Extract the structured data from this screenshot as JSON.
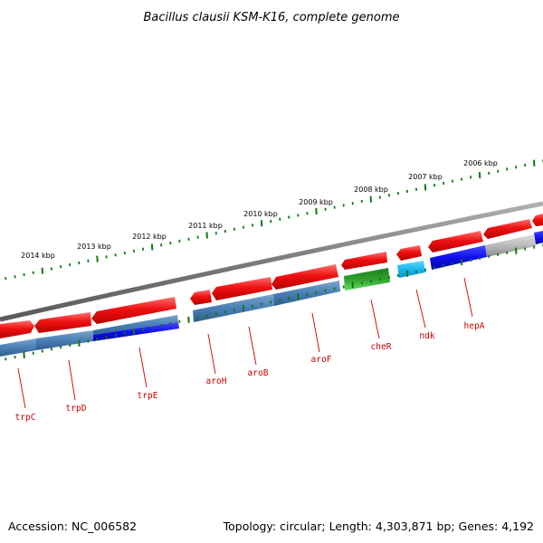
{
  "title": "Bacillus clausii KSM-K16, complete genome",
  "footer": {
    "accession": "Accession: NC_006582",
    "summary": "Topology: circular; Length: 4,303,871 bp; Genes: 4,192"
  },
  "colors": {
    "forward_gene": "#ee1111",
    "backbone": "#808080",
    "scale_ticks": "#117711",
    "label_text": "#cc0000",
    "steel_blue": "#4a7fb5",
    "blue": "#1010ee",
    "green": "#2ea02e",
    "cyan": "#1ab8f0",
    "gray": "#b8b8b8"
  },
  "kbp_ticks": [
    "2014 kbp",
    "2013 kbp",
    "2012 kbp",
    "2011 kbp",
    "2010 kbp",
    "2009 kbp",
    "2008 kbp",
    "2007 kbp",
    "2006 kbp"
  ],
  "genes": [
    {
      "name": "trpC",
      "track": "reverse",
      "color": "steel_blue"
    },
    {
      "name": "trpD",
      "track": "reverse",
      "color": "steel_blue"
    },
    {
      "name": "trpE",
      "track": "reverse",
      "color": "blue"
    },
    {
      "name": "aroH",
      "track": "reverse",
      "color": "steel_blue"
    },
    {
      "name": "aroB",
      "track": "reverse",
      "color": "steel_blue"
    },
    {
      "name": "aroF",
      "track": "reverse",
      "color": "steel_blue"
    },
    {
      "name": "cheR",
      "track": "reverse",
      "color": "green"
    },
    {
      "name": "ndk",
      "track": "reverse",
      "color": "cyan"
    },
    {
      "name": "hepA",
      "track": "reverse",
      "color": "blue"
    }
  ]
}
